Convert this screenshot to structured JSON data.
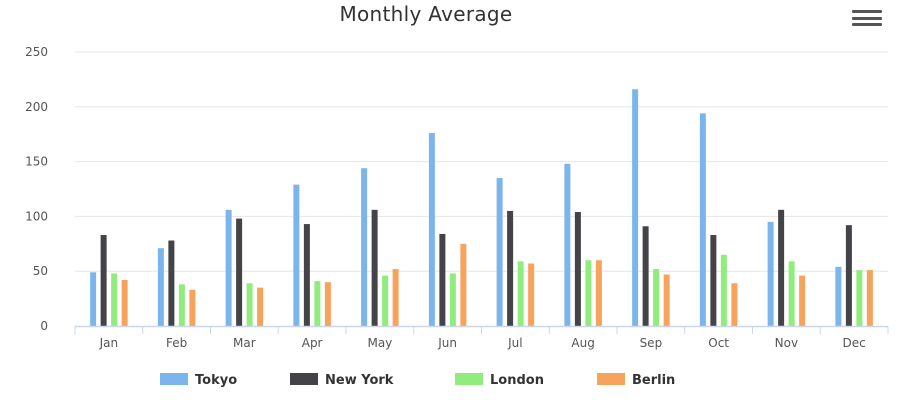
{
  "title": "Monthly Average",
  "menu_icon": "hamburger-menu-icon",
  "chart_data": {
    "type": "bar",
    "title": "Monthly Average",
    "xlabel": "",
    "ylabel": "",
    "ylim": [
      0,
      250
    ],
    "yticks": [
      0,
      50,
      100,
      150,
      200,
      250
    ],
    "grid": true,
    "legend_position": "bottom",
    "categories": [
      "Jan",
      "Feb",
      "Mar",
      "Apr",
      "May",
      "Jun",
      "Jul",
      "Aug",
      "Sep",
      "Oct",
      "Nov",
      "Dec"
    ],
    "series": [
      {
        "name": "Tokyo",
        "color": "#7cb5ec",
        "values": [
          49,
          71,
          106,
          129,
          144,
          176,
          135,
          148,
          216,
          194,
          95,
          54
        ]
      },
      {
        "name": "New York",
        "color": "#434348",
        "values": [
          83,
          78,
          98,
          93,
          106,
          84,
          105,
          104,
          91,
          83,
          106,
          92
        ]
      },
      {
        "name": "London",
        "color": "#90ed7d",
        "values": [
          48,
          38,
          39,
          41,
          46,
          48,
          59,
          60,
          52,
          65,
          59,
          51
        ]
      },
      {
        "name": "Berlin",
        "color": "#f7a35c",
        "values": [
          42,
          33,
          35,
          40,
          52,
          75,
          57,
          60,
          47,
          39,
          46,
          51
        ]
      }
    ]
  }
}
